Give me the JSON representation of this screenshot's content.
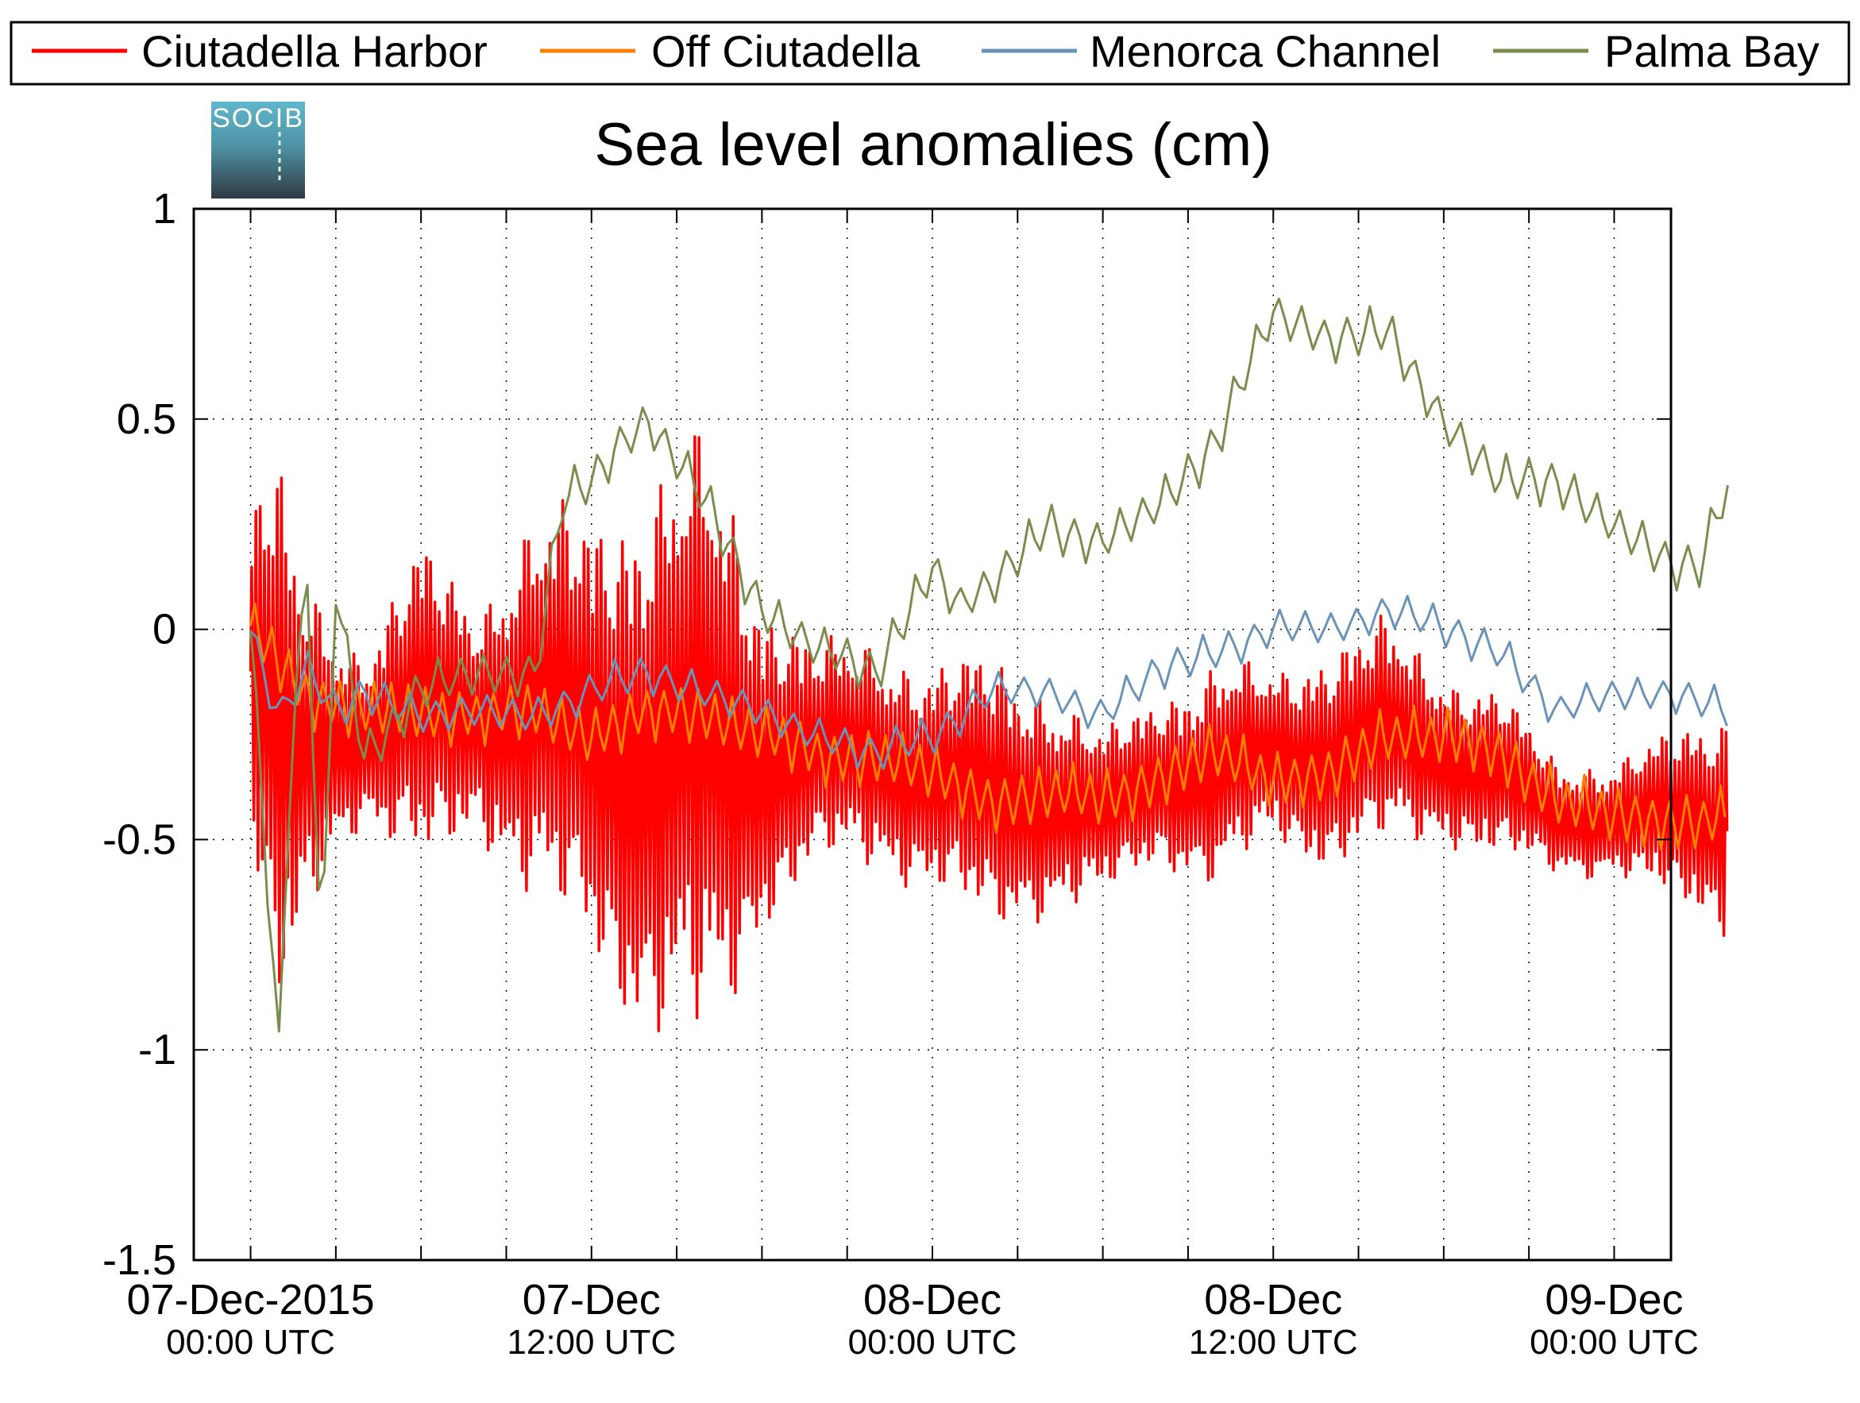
{
  "chart_data": {
    "type": "line",
    "title": "Sea level anomalies (cm)",
    "logo_text": "SOCIB",
    "xlabel": "",
    "ylabel": "",
    "ylim": [
      -1.5,
      1
    ],
    "yticks": [
      1,
      0.5,
      0,
      -0.5,
      -1,
      -1.5
    ],
    "ytick_labels": [
      "1",
      "0.5",
      "0",
      "-0.5",
      "-1",
      "-1.5"
    ],
    "xlim": [
      "2015-12-07T00:00",
      "2015-12-09T00:00"
    ],
    "x_start": "2015-12-06T22:00",
    "x_end": "2015-12-09T02:00",
    "x_major_ticks": [
      {
        "date": "07-Dec-2015",
        "time": "00:00 UTC"
      },
      {
        "date": "07-Dec",
        "time": "12:00 UTC"
      },
      {
        "date": "08-Dec",
        "time": "00:00 UTC"
      },
      {
        "date": "08-Dec",
        "time": "12:00 UTC"
      },
      {
        "date": "09-Dec",
        "time": "00:00 UTC"
      }
    ],
    "grid": true,
    "legend_position": "top",
    "series": [
      {
        "name": "Ciutadella Harbor",
        "color": "#ff0000",
        "x_hours": [
          0,
          0.5,
          1,
          1.5,
          2,
          3,
          4,
          6,
          8,
          10,
          12,
          14,
          16,
          17,
          18,
          20,
          22,
          24,
          26,
          28,
          30,
          32,
          34,
          36,
          38,
          40,
          42,
          44,
          46,
          48,
          50,
          52
        ],
        "values": [
          -0.1,
          -0.2,
          -0.3,
          -0.35,
          -0.3,
          -0.25,
          -0.25,
          -0.2,
          -0.2,
          -0.2,
          -0.25,
          -0.3,
          -0.3,
          -0.3,
          -0.3,
          -0.3,
          -0.3,
          -0.35,
          -0.4,
          -0.4,
          -0.45,
          -0.35,
          -0.35,
          -0.3,
          -0.3,
          -0.25,
          -0.3,
          -0.35,
          -0.45,
          -0.45,
          -0.45,
          -0.45
        ],
        "amp": [
          0.3,
          0.45,
          0.5,
          0.4,
          0.3,
          0.2,
          0.15,
          0.3,
          0.2,
          0.35,
          0.4,
          0.5,
          0.55,
          0.45,
          0.3,
          0.2,
          0.2,
          0.2,
          0.25,
          0.2,
          0.15,
          0.15,
          0.2,
          0.15,
          0.2,
          0.2,
          0.15,
          0.15,
          0.1,
          0.1,
          0.15,
          0.2
        ],
        "period_hours": 0.15
      },
      {
        "name": "Off Ciutadella",
        "color": "#ff8000",
        "x_hours": [
          0,
          2,
          4,
          6,
          8,
          10,
          12,
          14,
          16,
          18,
          20,
          22,
          24,
          26,
          28,
          30,
          32,
          34,
          36,
          38,
          40,
          42,
          44,
          46,
          48,
          50,
          52
        ],
        "values": [
          0,
          -0.15,
          -0.2,
          -0.2,
          -0.2,
          -0.2,
          -0.25,
          -0.2,
          -0.2,
          -0.25,
          -0.3,
          -0.3,
          -0.35,
          -0.4,
          -0.4,
          -0.4,
          -0.35,
          -0.3,
          -0.35,
          -0.35,
          -0.25,
          -0.25,
          -0.3,
          -0.4,
          -0.45,
          -0.45,
          -0.45
        ],
        "amp": 0.06,
        "period_hours": 0.6
      },
      {
        "name": "Menorca Channel",
        "color": "#6b93b8",
        "x_hours": [
          0,
          1,
          2,
          3,
          4,
          6,
          8,
          10,
          12,
          14,
          16,
          18,
          20,
          22,
          24,
          26,
          28,
          30,
          32,
          34,
          36,
          38,
          40,
          42,
          44,
          46,
          48,
          50,
          52
        ],
        "values": [
          0,
          -0.2,
          -0.1,
          -0.2,
          -0.15,
          -0.2,
          -0.2,
          -0.2,
          -0.15,
          -0.1,
          -0.15,
          -0.2,
          -0.25,
          -0.3,
          -0.25,
          -0.15,
          -0.15,
          -0.2,
          -0.1,
          -0.05,
          0,
          0,
          0.05,
          0,
          -0.05,
          -0.2,
          -0.15,
          -0.15,
          -0.2
        ],
        "amp": 0.04,
        "period_hours": 0.9
      },
      {
        "name": "Palma Bay",
        "color": "#7a8c4e",
        "x_hours": [
          0,
          0.5,
          1,
          1.5,
          2,
          2.5,
          3,
          4,
          6,
          8,
          10,
          11,
          12,
          13,
          14,
          15,
          16,
          18,
          20,
          22,
          24,
          25,
          26,
          28,
          30,
          32,
          34,
          36,
          38,
          40,
          42,
          44,
          46,
          48,
          50,
          51,
          52
        ],
        "values": [
          0,
          -0.5,
          -1.0,
          -0.2,
          0.1,
          -0.8,
          0.1,
          -0.3,
          -0.15,
          -0.1,
          -0.1,
          0.3,
          0.35,
          0.45,
          0.5,
          0.4,
          0.3,
          0.05,
          -0.05,
          -0.1,
          0.15,
          0.05,
          0.1,
          0.25,
          0.2,
          0.3,
          0.45,
          0.75,
          0.7,
          0.7,
          0.5,
          0.35,
          0.35,
          0.25,
          0.15,
          0.15,
          0.35
        ],
        "amp": 0.05,
        "period_hours": 0.8
      }
    ]
  }
}
